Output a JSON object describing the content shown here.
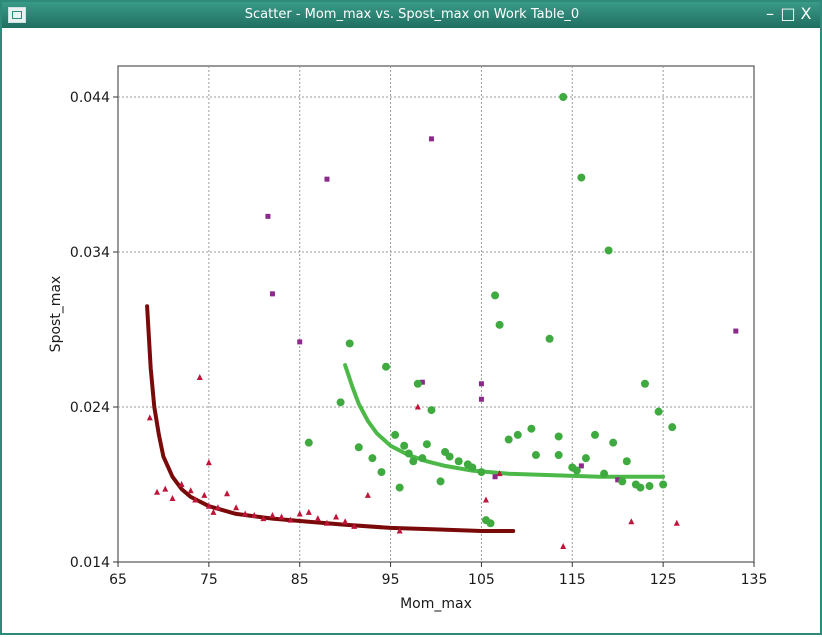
{
  "window": {
    "title": "Scatter - Mom_max vs. Spost_max on Work Table_0",
    "icon": "table-window-icon",
    "controls": {
      "minimize": "–",
      "maximize": "□",
      "close": "X"
    }
  },
  "chart_data": {
    "type": "scatter",
    "xlabel": "Mom_max",
    "ylabel": "Spost_max",
    "xlim": [
      65,
      135
    ],
    "ylim": [
      0.014,
      0.046
    ],
    "xticks": [
      "65",
      "75",
      "85",
      "95",
      "105",
      "115",
      "125",
      "135"
    ],
    "yticks": [
      "0.014",
      "0.024",
      "0.034",
      "0.044"
    ],
    "xtick_values": [
      65,
      75,
      85,
      95,
      105,
      115,
      125,
      135
    ],
    "ytick_values": [
      0.014,
      0.024,
      0.034,
      0.044
    ],
    "grid": true,
    "legend": "none",
    "series": [
      {
        "marker": "triangle",
        "color": "#c0153a",
        "points": [
          [
            68.5,
            0.0233
          ],
          [
            69.3,
            0.0185
          ],
          [
            70.2,
            0.0187
          ],
          [
            71.0,
            0.0181
          ],
          [
            72.0,
            0.019
          ],
          [
            73.0,
            0.0186
          ],
          [
            73.5,
            0.018
          ],
          [
            74.5,
            0.0183
          ],
          [
            74.0,
            0.0259
          ],
          [
            75.0,
            0.0176
          ],
          [
            75.5,
            0.0172
          ],
          [
            75.0,
            0.0204
          ],
          [
            76.0,
            0.0175
          ],
          [
            77.0,
            0.0184
          ],
          [
            78.0,
            0.0175
          ],
          [
            79.0,
            0.0171
          ],
          [
            80.0,
            0.017
          ],
          [
            81.0,
            0.0168
          ],
          [
            82.0,
            0.017
          ],
          [
            83.0,
            0.0169
          ],
          [
            84.0,
            0.0167
          ],
          [
            85.0,
            0.0171
          ],
          [
            86.0,
            0.0172
          ],
          [
            87.0,
            0.0168
          ],
          [
            88.0,
            0.0165
          ],
          [
            89.0,
            0.0169
          ],
          [
            90.0,
            0.0166
          ],
          [
            91.0,
            0.0163
          ],
          [
            92.5,
            0.0183
          ],
          [
            96.0,
            0.016
          ],
          [
            98.0,
            0.024
          ],
          [
            105.5,
            0.018
          ],
          [
            107.0,
            0.0197
          ],
          [
            114.0,
            0.015
          ],
          [
            121.5,
            0.0166
          ],
          [
            126.5,
            0.0165
          ]
        ]
      },
      {
        "marker": "square",
        "color": "#8b2a8b",
        "points": [
          [
            81.5,
            0.0363
          ],
          [
            82.0,
            0.0313
          ],
          [
            85.0,
            0.0282
          ],
          [
            88.0,
            0.0387
          ],
          [
            98.5,
            0.0256
          ],
          [
            99.5,
            0.0413
          ],
          [
            105.0,
            0.0255
          ],
          [
            105.0,
            0.0245
          ],
          [
            106.5,
            0.0195
          ],
          [
            116.0,
            0.0202
          ],
          [
            120.0,
            0.0193
          ],
          [
            133.0,
            0.0289
          ]
        ]
      },
      {
        "marker": "circle",
        "color": "#3faa3f",
        "points": [
          [
            86.0,
            0.0217
          ],
          [
            89.5,
            0.0243
          ],
          [
            90.5,
            0.0281
          ],
          [
            91.5,
            0.0214
          ],
          [
            93.0,
            0.0207
          ],
          [
            94.0,
            0.0198
          ],
          [
            94.5,
            0.0266
          ],
          [
            95.5,
            0.0222
          ],
          [
            96.0,
            0.0188
          ],
          [
            96.5,
            0.0215
          ],
          [
            97.0,
            0.021
          ],
          [
            97.5,
            0.0205
          ],
          [
            98.0,
            0.0255
          ],
          [
            98.5,
            0.0207
          ],
          [
            99.0,
            0.0216
          ],
          [
            99.5,
            0.0238
          ],
          [
            100.5,
            0.0192
          ],
          [
            101.0,
            0.0211
          ],
          [
            101.5,
            0.0208
          ],
          [
            102.5,
            0.0205
          ],
          [
            103.5,
            0.0203
          ],
          [
            104.0,
            0.0201
          ],
          [
            105.0,
            0.0198
          ],
          [
            105.5,
            0.0167
          ],
          [
            106.0,
            0.0165
          ],
          [
            106.5,
            0.0312
          ],
          [
            107.0,
            0.0293
          ],
          [
            108.0,
            0.0219
          ],
          [
            109.0,
            0.0222
          ],
          [
            110.5,
            0.0226
          ],
          [
            111.0,
            0.0209
          ],
          [
            112.5,
            0.0284
          ],
          [
            113.5,
            0.0221
          ],
          [
            113.5,
            0.0209
          ],
          [
            114.0,
            0.044
          ],
          [
            115.0,
            0.0201
          ],
          [
            115.5,
            0.0199
          ],
          [
            116.0,
            0.0388
          ],
          [
            116.5,
            0.0207
          ],
          [
            117.5,
            0.0222
          ],
          [
            118.5,
            0.0197
          ],
          [
            119.0,
            0.0341
          ],
          [
            119.5,
            0.0217
          ],
          [
            120.5,
            0.0192
          ],
          [
            121.0,
            0.0205
          ],
          [
            122.0,
            0.019
          ],
          [
            122.5,
            0.0188
          ],
          [
            123.0,
            0.0255
          ],
          [
            123.5,
            0.0189
          ],
          [
            124.5,
            0.0237
          ],
          [
            125.0,
            0.019
          ],
          [
            126.0,
            0.0227
          ]
        ]
      }
    ],
    "fit_lines": [
      {
        "color": "#7a0a0a",
        "points": [
          [
            68.2,
            0.0305
          ],
          [
            68.6,
            0.0265
          ],
          [
            69.0,
            0.024
          ],
          [
            69.5,
            0.0222
          ],
          [
            70.0,
            0.0208
          ],
          [
            71.0,
            0.0195
          ],
          [
            72.0,
            0.0187
          ],
          [
            73.0,
            0.0182
          ],
          [
            75.0,
            0.0176
          ],
          [
            78.0,
            0.0171
          ],
          [
            82.0,
            0.0168
          ],
          [
            86.0,
            0.0166
          ],
          [
            90.0,
            0.0164
          ],
          [
            95.0,
            0.0162
          ],
          [
            100.0,
            0.0161
          ],
          [
            105.0,
            0.016
          ],
          [
            108.5,
            0.016
          ]
        ]
      },
      {
        "color": "#4cb848",
        "points": [
          [
            90.0,
            0.0267
          ],
          [
            90.8,
            0.0253
          ],
          [
            91.5,
            0.0242
          ],
          [
            92.5,
            0.0231
          ],
          [
            93.5,
            0.0223
          ],
          [
            95.0,
            0.0215
          ],
          [
            97.0,
            0.0209
          ],
          [
            99.0,
            0.0205
          ],
          [
            101.0,
            0.0202
          ],
          [
            104.0,
            0.0199
          ],
          [
            108.0,
            0.0197
          ],
          [
            113.0,
            0.0196
          ],
          [
            118.0,
            0.0195
          ],
          [
            125.0,
            0.0195
          ]
        ]
      }
    ]
  }
}
